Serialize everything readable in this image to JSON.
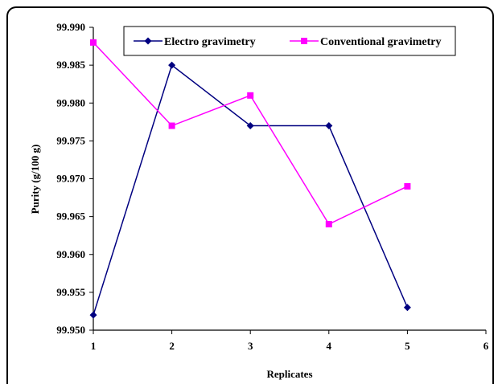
{
  "chart_data": {
    "type": "line",
    "xlabel": "Replicates",
    "ylabel": "Purity (g/100 g)",
    "xlim": [
      1,
      6
    ],
    "ylim": [
      99.95,
      99.99
    ],
    "x_ticks": [
      "1",
      "2",
      "3",
      "4",
      "5",
      "6"
    ],
    "y_ticks": [
      "99.950",
      "99.955",
      "99.960",
      "99.965",
      "99.970",
      "99.975",
      "99.980",
      "99.985",
      "99.990"
    ],
    "grid": false,
    "legend_position": "top",
    "series": [
      {
        "name": "Electro gravimetry",
        "color": "#000080",
        "marker": "diamond",
        "x": [
          1,
          2,
          3,
          4,
          5
        ],
        "values": [
          99.952,
          99.985,
          99.977,
          99.977,
          99.953
        ]
      },
      {
        "name": "Conventional gravimetry",
        "color": "#ff00ff",
        "marker": "square",
        "x": [
          1,
          2,
          3,
          4,
          5
        ],
        "values": [
          99.988,
          99.977,
          99.981,
          99.964,
          99.969
        ]
      }
    ]
  }
}
